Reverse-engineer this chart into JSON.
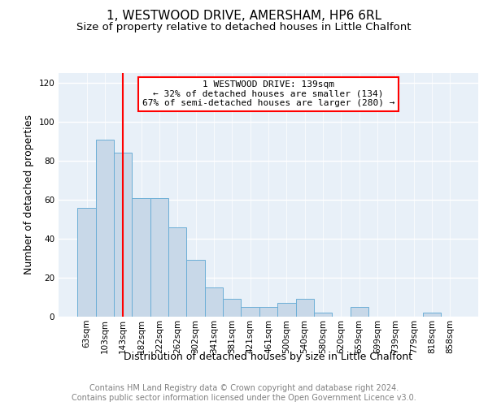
{
  "title": "1, WESTWOOD DRIVE, AMERSHAM, HP6 6RL",
  "subtitle": "Size of property relative to detached houses in Little Chalfont",
  "xlabel": "Distribution of detached houses by size in Little Chalfont",
  "ylabel": "Number of detached properties",
  "footer_line1": "Contains HM Land Registry data © Crown copyright and database right 2024.",
  "footer_line2": "Contains public sector information licensed under the Open Government Licence v3.0.",
  "categories": [
    "63sqm",
    "103sqm",
    "143sqm",
    "182sqm",
    "222sqm",
    "262sqm",
    "302sqm",
    "341sqm",
    "381sqm",
    "421sqm",
    "461sqm",
    "500sqm",
    "540sqm",
    "580sqm",
    "620sqm",
    "659sqm",
    "699sqm",
    "739sqm",
    "779sqm",
    "818sqm",
    "858sqm"
  ],
  "values": [
    56,
    91,
    84,
    61,
    61,
    46,
    29,
    15,
    9,
    5,
    5,
    7,
    9,
    2,
    0,
    5,
    0,
    0,
    0,
    2,
    0
  ],
  "bar_color": "#c8d8e8",
  "bar_edge_color": "#6baed6",
  "red_line_index": 2,
  "annotation_line1": "1 WESTWOOD DRIVE: 139sqm",
  "annotation_line2": "← 32% of detached houses are smaller (134)",
  "annotation_line3": "67% of semi-detached houses are larger (280) →",
  "annotation_box_color": "white",
  "annotation_box_edge_color": "red",
  "ylim": [
    0,
    125
  ],
  "yticks": [
    0,
    20,
    40,
    60,
    80,
    100,
    120
  ],
  "bg_color": "#e8f0f8",
  "grid_color": "white",
  "title_fontsize": 11,
  "subtitle_fontsize": 9.5,
  "xlabel_fontsize": 9,
  "ylabel_fontsize": 9,
  "footer_fontsize": 7,
  "tick_fontsize": 7.5,
  "annot_fontsize": 8
}
